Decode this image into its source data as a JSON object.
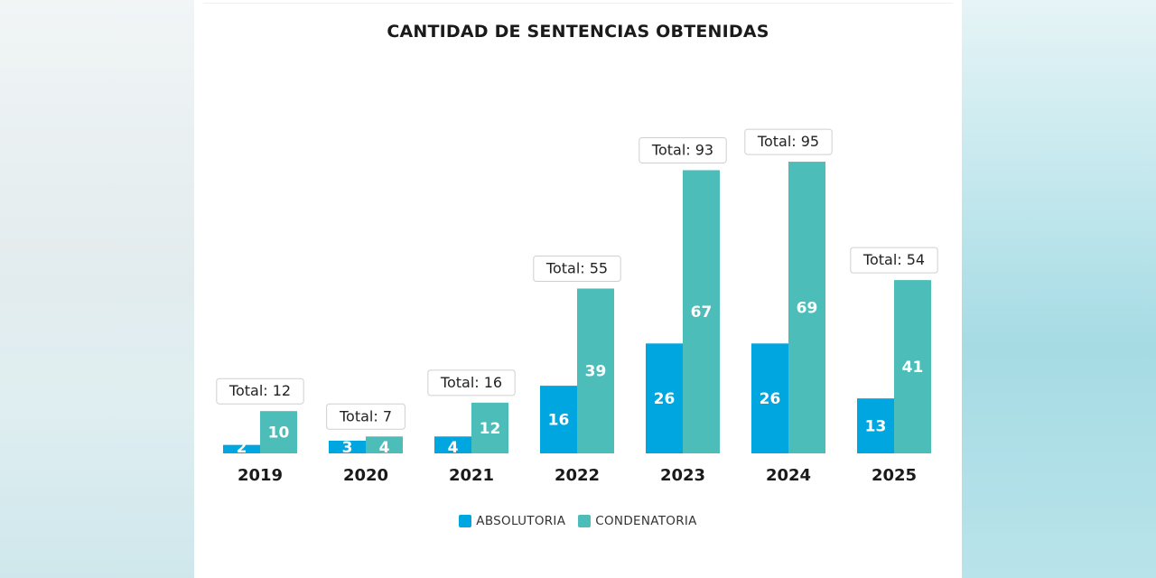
{
  "colors": {
    "absolutoria": "#00a6e0",
    "condenatoria": "#4cbdb9"
  },
  "chart_data": {
    "type": "bar",
    "title": "CANTIDAD DE SENTENCIAS OBTENIDAS",
    "categories": [
      "2019",
      "2020",
      "2021",
      "2022",
      "2023",
      "2024",
      "2025"
    ],
    "series": [
      {
        "name": "ABSOLUTORIA",
        "values": [
          2,
          3,
          4,
          16,
          26,
          26,
          13
        ]
      },
      {
        "name": "CONDENATORIA",
        "values": [
          10,
          4,
          12,
          39,
          67,
          69,
          41
        ]
      }
    ],
    "totals": [
      "Total: 12",
      "Total: 7",
      "Total: 16",
      "Total: 55",
      "Total: 93",
      "Total: 95",
      "Total: 54"
    ],
    "ylim": [
      0,
      70
    ],
    "xlabel": "",
    "ylabel": "",
    "grid": false,
    "legend_position": "bottom"
  }
}
